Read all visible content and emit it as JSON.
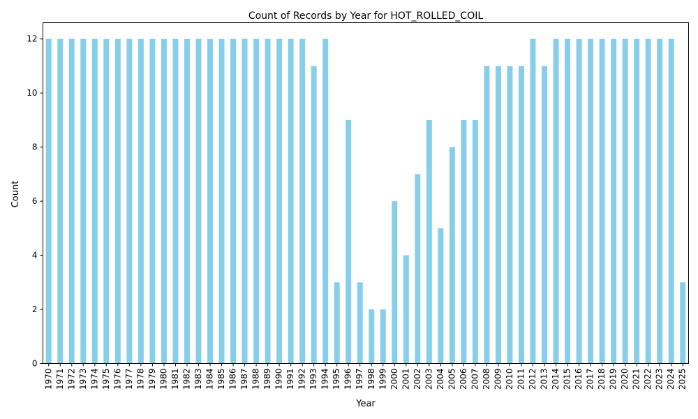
{
  "chart_data": {
    "type": "bar",
    "title": "Count of Records by Year for HOT_ROLLED_COIL",
    "xlabel": "Year",
    "ylabel": "Count",
    "ylim": [
      0,
      12.6
    ],
    "yticks": [
      0,
      2,
      4,
      6,
      8,
      10,
      12
    ],
    "grid": false,
    "bar_color": "#87ceeb",
    "categories": [
      "1970",
      "1971",
      "1972",
      "1973",
      "1974",
      "1975",
      "1976",
      "1977",
      "1978",
      "1979",
      "1980",
      "1981",
      "1982",
      "1983",
      "1984",
      "1985",
      "1986",
      "1987",
      "1988",
      "1989",
      "1990",
      "1991",
      "1992",
      "1993",
      "1994",
      "1995",
      "1996",
      "1997",
      "1998",
      "1999",
      "2000",
      "2001",
      "2002",
      "2003",
      "2004",
      "2005",
      "2006",
      "2007",
      "2008",
      "2009",
      "2010",
      "2011",
      "2012",
      "2013",
      "2014",
      "2015",
      "2016",
      "2017",
      "2018",
      "2019",
      "2020",
      "2021",
      "2022",
      "2023",
      "2024",
      "2025"
    ],
    "values": [
      12,
      12,
      12,
      12,
      12,
      12,
      12,
      12,
      12,
      12,
      12,
      12,
      12,
      12,
      12,
      12,
      12,
      12,
      12,
      12,
      12,
      12,
      12,
      11,
      12,
      3,
      9,
      3,
      2,
      2,
      6,
      4,
      7,
      9,
      5,
      8,
      9,
      9,
      11,
      11,
      11,
      11,
      12,
      11,
      12,
      12,
      12,
      12,
      12,
      12,
      12,
      12,
      12,
      12,
      12,
      3
    ]
  }
}
